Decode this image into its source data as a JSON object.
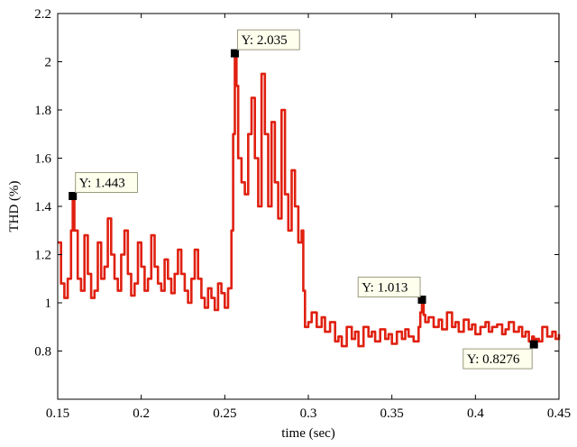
{
  "chart_data": {
    "type": "line",
    "xlabel": "time (sec)",
    "ylabel": "THD (%)",
    "xlim": [
      0.15,
      0.45
    ],
    "ylim": [
      0.6,
      2.2
    ],
    "x_ticks": [
      "0.15",
      "0.2",
      "0.25",
      "0.3",
      "0.35",
      "0.4",
      "0.45"
    ],
    "y_ticks": [
      "0.8",
      "1",
      "1.2",
      "1.4",
      "1.6",
      "1.8",
      "2",
      "2.2"
    ],
    "grid": false,
    "line_color": "#e02010",
    "series": [
      {
        "x": [
          0.15,
          0.152,
          0.154,
          0.156,
          0.158,
          0.159,
          0.16,
          0.162,
          0.164,
          0.166,
          0.168,
          0.17,
          0.172,
          0.174,
          0.176,
          0.178,
          0.18,
          0.182,
          0.184,
          0.186,
          0.188,
          0.19,
          0.192,
          0.194,
          0.196,
          0.198,
          0.2,
          0.202,
          0.204,
          0.206,
          0.208,
          0.21,
          0.212,
          0.214,
          0.216,
          0.218,
          0.22,
          0.222,
          0.224,
          0.226,
          0.228,
          0.23,
          0.232,
          0.234,
          0.236,
          0.238,
          0.24,
          0.242,
          0.244,
          0.246,
          0.248,
          0.25,
          0.252,
          0.254,
          0.255,
          0.256,
          0.257,
          0.258,
          0.26,
          0.262,
          0.264,
          0.266,
          0.268,
          0.27,
          0.272,
          0.274,
          0.276,
          0.278,
          0.28,
          0.282,
          0.284,
          0.286,
          0.288,
          0.29,
          0.292,
          0.294,
          0.296,
          0.297,
          0.298,
          0.3,
          0.302,
          0.305,
          0.308,
          0.31,
          0.313,
          0.316,
          0.318,
          0.32,
          0.323,
          0.326,
          0.328,
          0.33,
          0.333,
          0.336,
          0.338,
          0.34,
          0.343,
          0.346,
          0.348,
          0.35,
          0.353,
          0.356,
          0.358,
          0.36,
          0.363,
          0.366,
          0.367,
          0.368,
          0.369,
          0.37,
          0.372,
          0.375,
          0.378,
          0.38,
          0.383,
          0.386,
          0.388,
          0.39,
          0.393,
          0.396,
          0.398,
          0.4,
          0.403,
          0.406,
          0.408,
          0.41,
          0.413,
          0.416,
          0.418,
          0.42,
          0.423,
          0.426,
          0.428,
          0.43,
          0.432,
          0.434,
          0.435,
          0.436,
          0.438,
          0.44,
          0.443,
          0.446,
          0.448,
          0.45
        ],
        "y": [
          1.25,
          1.08,
          1.02,
          1.1,
          1.3,
          1.443,
          1.3,
          1.1,
          1.05,
          1.28,
          1.12,
          1.02,
          1.05,
          1.25,
          1.1,
          1.15,
          1.35,
          1.2,
          1.1,
          1.05,
          1.2,
          1.3,
          1.12,
          1.03,
          1.08,
          1.25,
          1.15,
          1.05,
          1.1,
          1.28,
          1.15,
          1.08,
          1.05,
          1.18,
          1.1,
          1.04,
          1.12,
          1.22,
          1.12,
          1.05,
          1.0,
          1.1,
          1.22,
          1.1,
          1.02,
          0.98,
          1.06,
          1.02,
          0.97,
          1.08,
          1.04,
          0.98,
          1.06,
          1.3,
          1.7,
          2.035,
          1.9,
          1.6,
          1.5,
          1.45,
          1.7,
          1.85,
          1.6,
          1.4,
          1.95,
          1.7,
          1.4,
          1.75,
          1.5,
          1.35,
          1.8,
          1.45,
          1.3,
          1.55,
          1.4,
          1.25,
          1.3,
          1.05,
          0.9,
          0.92,
          0.96,
          0.9,
          0.94,
          0.88,
          0.92,
          0.84,
          0.86,
          0.82,
          0.9,
          0.85,
          0.88,
          0.82,
          0.9,
          0.86,
          0.88,
          0.84,
          0.89,
          0.85,
          0.87,
          0.83,
          0.88,
          0.85,
          0.89,
          0.86,
          0.84,
          0.9,
          0.96,
          1.013,
          0.95,
          0.92,
          0.94,
          0.9,
          0.93,
          0.89,
          0.96,
          0.9,
          0.92,
          0.88,
          0.93,
          0.89,
          0.91,
          0.87,
          0.9,
          0.92,
          0.88,
          0.9,
          0.91,
          0.87,
          0.89,
          0.92,
          0.88,
          0.9,
          0.86,
          0.88,
          0.84,
          0.86,
          0.8276,
          0.85,
          0.84,
          0.9,
          0.86,
          0.88,
          0.85,
          0.87
        ]
      }
    ],
    "datatips": [
      {
        "x": 0.159,
        "y": 1.443,
        "label": "Y: 1.443",
        "pos": "above-right"
      },
      {
        "x": 0.256,
        "y": 2.035,
        "label": "Y: 2.035",
        "pos": "above-right"
      },
      {
        "x": 0.368,
        "y": 1.013,
        "label": "Y: 1.013",
        "pos": "above-left"
      },
      {
        "x": 0.435,
        "y": 0.8276,
        "label": "Y: 0.8276",
        "pos": "below-left"
      }
    ]
  }
}
